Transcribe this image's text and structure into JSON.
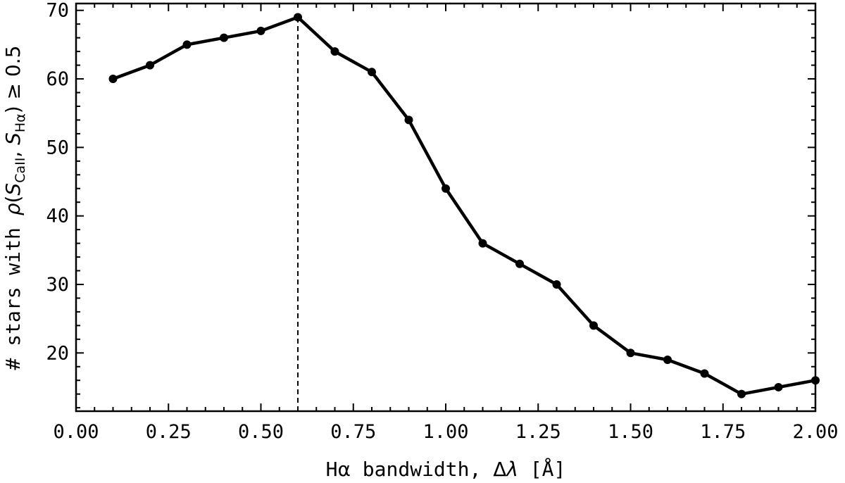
{
  "chart_data": {
    "type": "line",
    "xlabel": "Hα bandwidth, Δλ [Å]",
    "ylabel": "# stars with ρ(S_CaII, S_Hα) ≥ 0.5",
    "xlim": [
      0.0,
      2.0
    ],
    "ylim": [
      11.5,
      71
    ],
    "xticks": [
      "0.00",
      "0.25",
      "0.50",
      "0.75",
      "1.00",
      "1.25",
      "1.50",
      "1.75",
      "2.00"
    ],
    "yticks": [
      "20",
      "30",
      "40",
      "50",
      "60",
      "70"
    ],
    "x": [
      0.1,
      0.2,
      0.3,
      0.4,
      0.5,
      0.6,
      0.7,
      0.8,
      0.9,
      1.0,
      1.1,
      1.2,
      1.3,
      1.4,
      1.5,
      1.6,
      1.7,
      1.8,
      1.9,
      2.0
    ],
    "y": [
      60,
      62,
      65,
      66,
      67,
      69,
      64,
      61,
      54,
      44,
      36,
      33,
      30,
      24,
      20,
      19,
      17,
      14,
      15,
      16
    ],
    "vline_x": 0.6,
    "line_color": "#000000",
    "grid": false
  }
}
